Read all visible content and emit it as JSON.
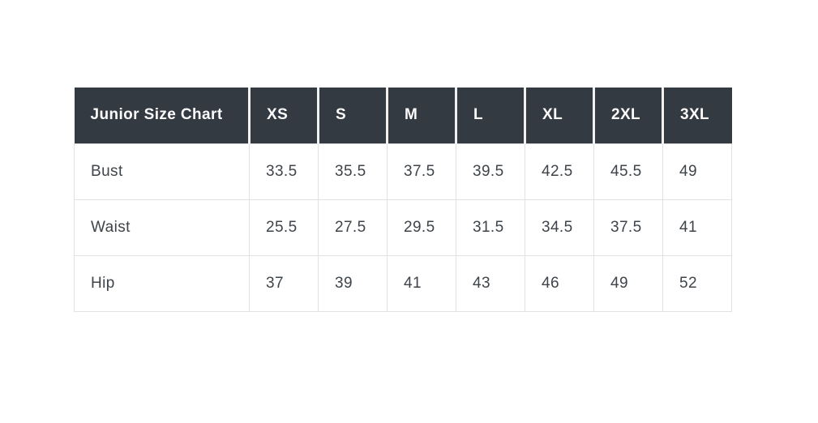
{
  "page": {
    "background": "#ffffff"
  },
  "chart_data": {
    "type": "table",
    "title": "Junior Size Chart",
    "columns": [
      "XS",
      "S",
      "M",
      "L",
      "XL",
      "2XL",
      "3XL"
    ],
    "rows": [
      {
        "label": "Bust",
        "values": [
          "33.5",
          "35.5",
          "37.5",
          "39.5",
          "42.5",
          "45.5",
          "49"
        ]
      },
      {
        "label": "Waist",
        "values": [
          "25.5",
          "27.5",
          "29.5",
          "31.5",
          "34.5",
          "37.5",
          "41"
        ]
      },
      {
        "label": "Hip",
        "values": [
          "37",
          "39",
          "41",
          "43",
          "46",
          "49",
          "52"
        ]
      }
    ]
  },
  "colors": {
    "header_background": "#343a41",
    "header_text": "#fbfbfb",
    "header_divider": "#f1f1f1",
    "body_text": "#3e444a",
    "cell_border": "#e2e2e2",
    "page_background": "#ffffff"
  }
}
